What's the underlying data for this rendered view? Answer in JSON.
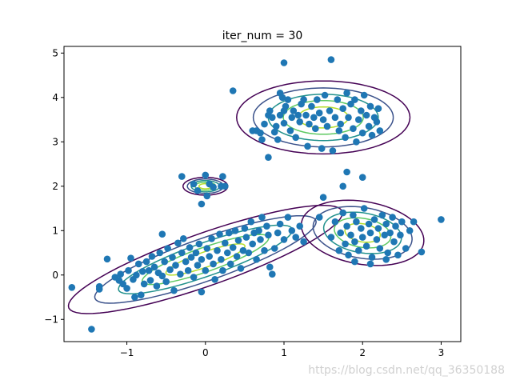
{
  "chart_data": {
    "type": "scatter",
    "title": "iter_num = 30",
    "xlabel": "",
    "ylabel": "",
    "xlim": [
      -1.8,
      3.25
    ],
    "ylim": [
      -1.5,
      5.15
    ],
    "xticks": [
      -1,
      0,
      1,
      2,
      3
    ],
    "yticks": [
      -1,
      0,
      1,
      2,
      3,
      4,
      5
    ],
    "point_color": "#1f77b4",
    "contour_colors": [
      "#440154",
      "#3b528b",
      "#21918c",
      "#5ec962",
      "#b5de2b"
    ],
    "components": [
      {
        "mean": [
          1.5,
          3.55
        ],
        "cov": [
          [
            0.18,
            0.0
          ],
          [
            0.0,
            0.1
          ]
        ]
      },
      {
        "mean": [
          0.0,
          0.35
        ],
        "cov": [
          [
            0.45,
            0.27
          ],
          [
            0.27,
            0.22
          ]
        ]
      },
      {
        "mean": [
          2.0,
          0.95
        ],
        "cov": [
          [
            0.09,
            -0.02
          ],
          [
            -0.02,
            0.08
          ]
        ]
      },
      {
        "mean": [
          0.0,
          2.0
        ],
        "cov": [
          [
            0.012,
            0.0
          ],
          [
            0.0,
            0.006
          ]
        ]
      }
    ],
    "points": [
      [
        -1.7,
        -0.28
      ],
      [
        -1.45,
        -1.22
      ],
      [
        -1.35,
        -0.32
      ],
      [
        -1.35,
        -0.26
      ],
      [
        -1.25,
        0.36
      ],
      [
        -1.15,
        -0.05
      ],
      [
        -1.1,
        -0.12
      ],
      [
        -1.08,
        0.02
      ],
      [
        -1.05,
        -0.2
      ],
      [
        -1.0,
        -0.3
      ],
      [
        -0.95,
        0.38
      ],
      [
        -0.98,
        0.1
      ],
      [
        -0.92,
        -0.1
      ],
      [
        -0.9,
        -0.5
      ],
      [
        -0.88,
        0.0
      ],
      [
        -0.85,
        0.25
      ],
      [
        -0.82,
        -0.45
      ],
      [
        -0.8,
        0.08
      ],
      [
        -0.78,
        -0.2
      ],
      [
        -0.75,
        0.3
      ],
      [
        -0.72,
        0.1
      ],
      [
        -0.7,
        -0.12
      ],
      [
        -0.68,
        0.42
      ],
      [
        -0.65,
        0.18
      ],
      [
        -0.62,
        -0.25
      ],
      [
        -0.6,
        0.05
      ],
      [
        -0.58,
        0.5
      ],
      [
        -0.55,
        0.92
      ],
      [
        -0.55,
        -0.02
      ],
      [
        -0.52,
        0.3
      ],
      [
        -0.5,
        -0.15
      ],
      [
        -0.48,
        0.6
      ],
      [
        -0.45,
        0.12
      ],
      [
        -0.42,
        0.4
      ],
      [
        -0.4,
        -0.35
      ],
      [
        -0.38,
        0.22
      ],
      [
        -0.35,
        0.72
      ],
      [
        -0.32,
        0.02
      ],
      [
        -0.3,
        0.5
      ],
      [
        -0.28,
        0.82
      ],
      [
        -0.25,
        0.3
      ],
      [
        -0.22,
        0.1
      ],
      [
        -0.2,
        0.62
      ],
      [
        -0.18,
        0.4
      ],
      [
        -0.15,
        -0.05
      ],
      [
        -0.12,
        0.5
      ],
      [
        -0.1,
        0.22
      ],
      [
        -0.08,
        0.7
      ],
      [
        -0.05,
        0.35
      ],
      [
        -0.05,
        -0.38
      ],
      [
        0.0,
        0.1
      ],
      [
        0.02,
        0.6
      ],
      [
        0.05,
        0.42
      ],
      [
        0.08,
        0.82
      ],
      [
        0.1,
        0.25
      ],
      [
        0.12,
        -0.1
      ],
      [
        0.15,
        0.55
      ],
      [
        0.18,
        0.92
      ],
      [
        0.2,
        0.35
      ],
      [
        0.22,
        0.1
      ],
      [
        0.25,
        0.72
      ],
      [
        0.28,
        0.5
      ],
      [
        0.3,
        0.95
      ],
      [
        0.32,
        0.25
      ],
      [
        0.35,
        0.62
      ],
      [
        0.38,
        1.0
      ],
      [
        0.4,
        0.42
      ],
      [
        0.42,
        0.78
      ],
      [
        0.45,
        0.15
      ],
      [
        0.48,
        0.55
      ],
      [
        0.5,
        1.05
      ],
      [
        0.52,
        0.85
      ],
      [
        0.55,
        0.5
      ],
      [
        0.58,
        1.2
      ],
      [
        0.6,
        0.7
      ],
      [
        0.62,
        0.95
      ],
      [
        0.65,
        0.35
      ],
      [
        0.68,
        1.0
      ],
      [
        0.7,
        0.8
      ],
      [
        0.72,
        1.3
      ],
      [
        0.75,
        0.55
      ],
      [
        0.78,
        1.1
      ],
      [
        0.8,
        0.9
      ],
      [
        0.82,
        0.18
      ],
      [
        0.85,
        0.02
      ],
      [
        0.88,
        0.6
      ],
      [
        0.92,
        0.95
      ],
      [
        0.95,
        1.15
      ],
      [
        1.0,
        0.8
      ],
      [
        1.05,
        1.3
      ],
      [
        1.1,
        1.0
      ],
      [
        1.15,
        0.85
      ],
      [
        1.2,
        1.1
      ],
      [
        1.25,
        0.75
      ],
      [
        -0.3,
        2.22
      ],
      [
        -0.15,
        2.05
      ],
      [
        0.0,
        2.25
      ],
      [
        0.1,
        1.98
      ],
      [
        0.2,
        2.0
      ],
      [
        0.22,
        2.22
      ],
      [
        0.25,
        2.0
      ],
      [
        0.02,
        1.78
      ],
      [
        -0.05,
        1.6
      ],
      [
        -0.1,
        1.9
      ],
      [
        0.05,
        2.05
      ],
      [
        0.95,
        4.1
      ],
      [
        1.0,
        3.7
      ],
      [
        1.0,
        4.78
      ],
      [
        0.35,
        4.15
      ],
      [
        0.6,
        3.25
      ],
      [
        0.65,
        3.25
      ],
      [
        0.7,
        3.2
      ],
      [
        0.72,
        3.05
      ],
      [
        0.75,
        3.4
      ],
      [
        0.8,
        3.6
      ],
      [
        0.82,
        3.7
      ],
      [
        0.85,
        3.55
      ],
      [
        0.88,
        3.22
      ],
      [
        0.9,
        3.35
      ],
      [
        0.92,
        3.05
      ],
      [
        0.95,
        3.6
      ],
      [
        0.98,
        4.0
      ],
      [
        1.0,
        3.42
      ],
      [
        1.02,
        3.8
      ],
      [
        1.05,
        3.95
      ],
      [
        1.08,
        3.25
      ],
      [
        1.1,
        3.55
      ],
      [
        1.12,
        3.7
      ],
      [
        1.15,
        3.1
      ],
      [
        1.18,
        3.6
      ],
      [
        1.2,
        3.45
      ],
      [
        1.22,
        3.85
      ],
      [
        1.25,
        3.95
      ],
      [
        1.28,
        3.6
      ],
      [
        1.3,
        2.9
      ],
      [
        1.32,
        3.4
      ],
      [
        1.35,
        3.8
      ],
      [
        1.38,
        3.55
      ],
      [
        1.4,
        3.3
      ],
      [
        1.42,
        3.95
      ],
      [
        1.45,
        3.65
      ],
      [
        1.48,
        2.85
      ],
      [
        1.5,
        3.5
      ],
      [
        1.52,
        4.05
      ],
      [
        1.55,
        3.35
      ],
      [
        1.58,
        3.7
      ],
      [
        1.6,
        4.85
      ],
      [
        1.62,
        2.8
      ],
      [
        1.65,
        3.55
      ],
      [
        1.68,
        3.95
      ],
      [
        1.7,
        3.25
      ],
      [
        1.72,
        3.4
      ],
      [
        1.75,
        3.75
      ],
      [
        1.78,
        3.1
      ],
      [
        1.8,
        4.1
      ],
      [
        1.82,
        3.55
      ],
      [
        1.85,
        3.85
      ],
      [
        1.88,
        3.3
      ],
      [
        1.9,
        3.95
      ],
      [
        1.92,
        3.0
      ],
      [
        1.95,
        3.5
      ],
      [
        1.98,
        3.7
      ],
      [
        2.0,
        3.2
      ],
      [
        2.02,
        4.05
      ],
      [
        2.05,
        3.6
      ],
      [
        2.08,
        3.35
      ],
      [
        2.1,
        3.8
      ],
      [
        2.12,
        3.15
      ],
      [
        2.15,
        3.55
      ],
      [
        2.18,
        3.45
      ],
      [
        2.2,
        3.75
      ],
      [
        2.22,
        3.25
      ],
      [
        0.8,
        2.65
      ],
      [
        1.5,
        1.75
      ],
      [
        1.8,
        2.32
      ],
      [
        1.75,
        2.0
      ],
      [
        2.0,
        2.2
      ],
      [
        1.45,
        1.3
      ],
      [
        1.6,
        0.85
      ],
      [
        1.65,
        1.2
      ],
      [
        1.7,
        0.55
      ],
      [
        1.72,
        0.95
      ],
      [
        1.75,
        1.4
      ],
      [
        1.78,
        0.7
      ],
      [
        1.8,
        1.1
      ],
      [
        1.82,
        0.45
      ],
      [
        1.85,
        0.9
      ],
      [
        1.88,
        1.35
      ],
      [
        1.9,
        0.75
      ],
      [
        1.92,
        1.2
      ],
      [
        1.95,
        0.55
      ],
      [
        1.98,
        1.05
      ],
      [
        2.0,
        0.85
      ],
      [
        2.02,
        1.5
      ],
      [
        2.05,
        0.65
      ],
      [
        2.08,
        1.15
      ],
      [
        2.1,
        0.95
      ],
      [
        2.12,
        0.4
      ],
      [
        2.15,
        1.25
      ],
      [
        2.18,
        0.8
      ],
      [
        2.2,
        1.05
      ],
      [
        2.22,
        0.6
      ],
      [
        2.25,
        1.35
      ],
      [
        2.28,
        0.9
      ],
      [
        2.3,
        1.15
      ],
      [
        2.32,
        0.5
      ],
      [
        2.35,
        0.95
      ],
      [
        2.38,
        1.3
      ],
      [
        2.4,
        0.75
      ],
      [
        2.42,
        1.1
      ],
      [
        2.45,
        0.45
      ],
      [
        2.48,
        0.9
      ],
      [
        2.5,
        1.2
      ],
      [
        2.55,
        0.6
      ],
      [
        2.6,
        1.0
      ],
      [
        2.65,
        1.2
      ],
      [
        2.75,
        0.52
      ],
      [
        3.0,
        1.25
      ],
      [
        2.1,
        0.25
      ],
      [
        1.9,
        0.3
      ],
      [
        2.3,
        0.35
      ]
    ]
  },
  "watermark": "https://blog.csdn.net/qq_36350188"
}
